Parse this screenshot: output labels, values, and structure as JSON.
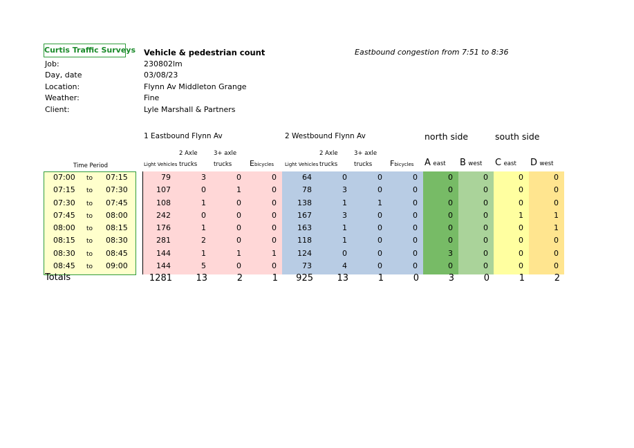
{
  "logo": "Curtis Traffic Surveys",
  "title": "Vehicle & pedestrian count",
  "note": "Eastbound congestion from 7:51 to 8:36",
  "meta": [
    {
      "label": "Job:",
      "value": "230802lm"
    },
    {
      "label": "Day, date",
      "value": "03/08/23"
    },
    {
      "label": "Location:",
      "value": "Flynn Av Middleton Grange"
    },
    {
      "label": "Weather:",
      "value": "Fine"
    },
    {
      "label": "Client:",
      "value": "Lyle Marshall & Partners"
    }
  ],
  "groups": {
    "eastbound": "1 Eastbound Flynn Av",
    "westbound": "2 Westbound Flynn Av",
    "north": "north side",
    "south": "south side"
  },
  "columns": {
    "time_period": "Time Period",
    "light": "Light Vehicles",
    "two_axle_top": "2 Axle",
    "two_axle_bottom": "trucks",
    "three_axle_top": "3+ axle",
    "three_axle_bottom": "trucks",
    "e_letter": "E",
    "f_letter": "F",
    "bicycles": "bicycles",
    "a_letter": "A",
    "a_sub": "east",
    "b_letter": "B",
    "b_sub": "west",
    "c_letter": "C",
    "c_sub": "east",
    "d_letter": "D",
    "d_sub": "west"
  },
  "to_word": "to",
  "rows": [
    {
      "from": "07:00",
      "to": "07:15",
      "v": [
        79,
        3,
        0,
        0,
        64,
        0,
        0,
        0,
        0,
        0,
        0,
        0
      ]
    },
    {
      "from": "07:15",
      "to": "07:30",
      "v": [
        107,
        0,
        1,
        0,
        78,
        3,
        0,
        0,
        0,
        0,
        0,
        0
      ]
    },
    {
      "from": "07:30",
      "to": "07:45",
      "v": [
        108,
        1,
        0,
        0,
        138,
        1,
        1,
        0,
        0,
        0,
        0,
        0
      ]
    },
    {
      "from": "07:45",
      "to": "08:00",
      "v": [
        242,
        0,
        0,
        0,
        167,
        3,
        0,
        0,
        0,
        0,
        1,
        1
      ]
    },
    {
      "from": "08:00",
      "to": "08:15",
      "v": [
        176,
        1,
        0,
        0,
        163,
        1,
        0,
        0,
        0,
        0,
        0,
        1
      ]
    },
    {
      "from": "08:15",
      "to": "08:30",
      "v": [
        281,
        2,
        0,
        0,
        118,
        1,
        0,
        0,
        0,
        0,
        0,
        0
      ]
    },
    {
      "from": "08:30",
      "to": "08:45",
      "v": [
        144,
        1,
        1,
        1,
        124,
        0,
        0,
        0,
        3,
        0,
        0,
        0
      ]
    },
    {
      "from": "08:45",
      "to": "09:00",
      "v": [
        144,
        5,
        0,
        0,
        73,
        4,
        0,
        0,
        0,
        0,
        0,
        0
      ]
    }
  ],
  "totals_label": "Totals",
  "totals": [
    1281,
    13,
    2,
    1,
    925,
    13,
    1,
    0,
    3,
    0,
    1,
    2
  ],
  "colors": {
    "time_bg": "#ffffcc",
    "east_bg": "#ffd7d7",
    "west_bg": "#b8cce4",
    "a_bg": "#77bb66",
    "b_bg": "#aad39a",
    "c_bg": "#ffffa0",
    "d_bg": "#ffe58f",
    "border_green": "#2e9b3a"
  }
}
